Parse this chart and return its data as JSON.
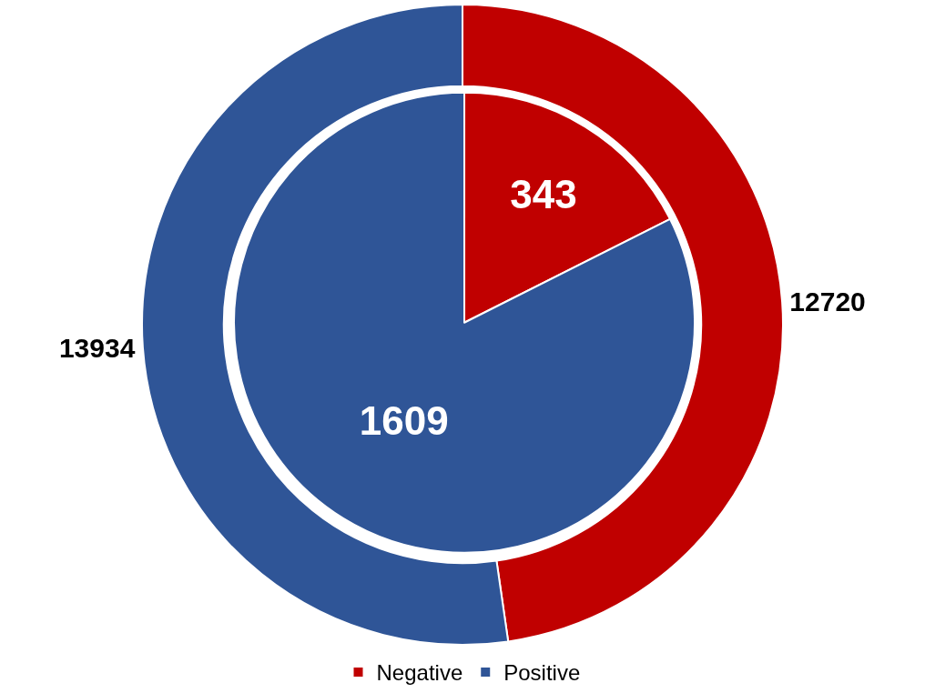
{
  "chart_data": {
    "type": "donut",
    "categories": [
      "Negative",
      "Positive"
    ],
    "colors": [
      "#c00000",
      "#2f5597"
    ],
    "data_labels": true,
    "legend": "bottom",
    "series": [
      {
        "values": [
          12720,
          13934
        ]
      },
      {
        "type": "pie",
        "values": [
          343,
          1609
        ]
      }
    ]
  }
}
